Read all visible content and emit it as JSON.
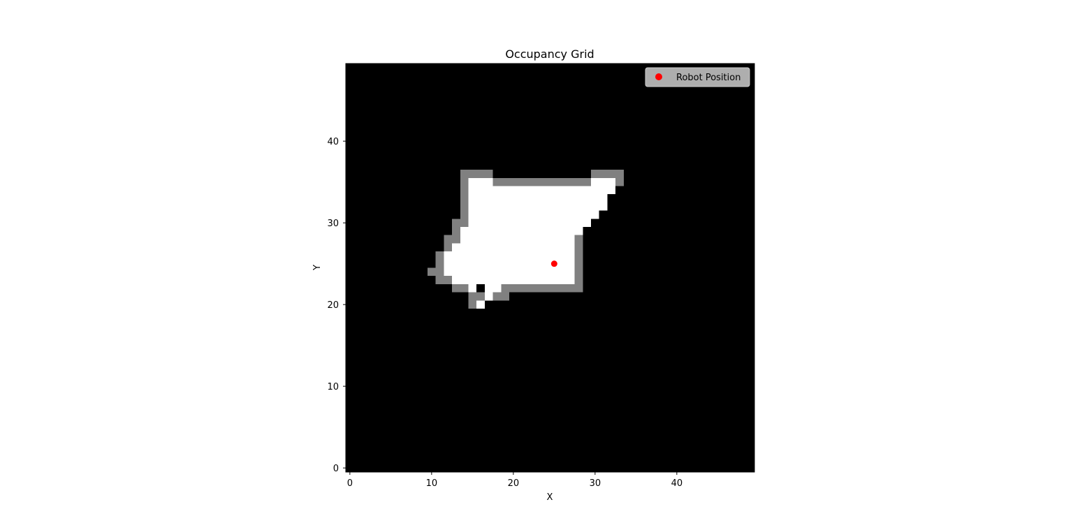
{
  "chart_data": {
    "type": "heatmap",
    "title": "Occupancy Grid",
    "xlabel": "X",
    "ylabel": "Y",
    "xlim": [
      -0.5,
      49.5
    ],
    "ylim": [
      -0.5,
      49.5
    ],
    "origin": "lower",
    "colormap": "gray",
    "xticks": [
      0,
      10,
      20,
      30,
      40
    ],
    "yticks": [
      0,
      10,
      20,
      30,
      40
    ],
    "grid": false,
    "legend": {
      "location": "upper right",
      "entries": [
        "Robot Position"
      ]
    },
    "cell_values": {
      "unknown": 0,
      "obstacle": 0.5,
      "free": 1
    },
    "free_rows": [
      {
        "y": 20,
        "x": [
          [
            16,
            16
          ]
        ]
      },
      {
        "y": 21,
        "x": [
          [
            17,
            17
          ]
        ]
      },
      {
        "y": 22,
        "x": [
          [
            15,
            15
          ],
          [
            17,
            18
          ]
        ]
      },
      {
        "y": 23,
        "x": [
          [
            13,
            27
          ]
        ]
      },
      {
        "y": 24,
        "x": [
          [
            12,
            27
          ]
        ]
      },
      {
        "y": 25,
        "x": [
          [
            12,
            27
          ]
        ]
      },
      {
        "y": 26,
        "x": [
          [
            12,
            27
          ]
        ]
      },
      {
        "y": 27,
        "x": [
          [
            13,
            27
          ]
        ]
      },
      {
        "y": 28,
        "x": [
          [
            14,
            27
          ]
        ]
      },
      {
        "y": 29,
        "x": [
          [
            14,
            28
          ]
        ]
      },
      {
        "y": 30,
        "x": [
          [
            15,
            29
          ]
        ]
      },
      {
        "y": 31,
        "x": [
          [
            15,
            30
          ]
        ]
      },
      {
        "y": 32,
        "x": [
          [
            15,
            31
          ]
        ]
      },
      {
        "y": 33,
        "x": [
          [
            15,
            31
          ]
        ]
      },
      {
        "y": 34,
        "x": [
          [
            15,
            32
          ]
        ]
      },
      {
        "y": 35,
        "x": [
          [
            15,
            17
          ],
          [
            30,
            32
          ]
        ]
      }
    ],
    "obstacle_rows": [
      {
        "y": 20,
        "x": [
          [
            15,
            15
          ]
        ]
      },
      {
        "y": 21,
        "x": [
          [
            15,
            16
          ],
          [
            18,
            19
          ]
        ]
      },
      {
        "y": 22,
        "x": [
          [
            13,
            14
          ],
          [
            19,
            28
          ]
        ]
      },
      {
        "y": 23,
        "x": [
          [
            11,
            12
          ],
          [
            28,
            28
          ]
        ]
      },
      {
        "y": 24,
        "x": [
          [
            10,
            11
          ],
          [
            28,
            28
          ]
        ]
      },
      {
        "y": 25,
        "x": [
          [
            11,
            11
          ],
          [
            28,
            28
          ]
        ]
      },
      {
        "y": 26,
        "x": [
          [
            11,
            11
          ],
          [
            28,
            28
          ]
        ]
      },
      {
        "y": 27,
        "x": [
          [
            12,
            12
          ],
          [
            28,
            28
          ]
        ]
      },
      {
        "y": 28,
        "x": [
          [
            12,
            13
          ],
          [
            28,
            28
          ]
        ]
      },
      {
        "y": 29,
        "x": [
          [
            13,
            13
          ]
        ]
      },
      {
        "y": 30,
        "x": [
          [
            13,
            14
          ]
        ]
      },
      {
        "y": 31,
        "x": [
          [
            14,
            14
          ]
        ]
      },
      {
        "y": 32,
        "x": [
          [
            14,
            14
          ]
        ]
      },
      {
        "y": 33,
        "x": [
          [
            14,
            14
          ]
        ]
      },
      {
        "y": 34,
        "x": [
          [
            14,
            14
          ]
        ]
      },
      {
        "y": 35,
        "x": [
          [
            14,
            14
          ],
          [
            18,
            29
          ],
          [
            33,
            33
          ]
        ]
      },
      {
        "y": 36,
        "x": [
          [
            14,
            17
          ],
          [
            30,
            33
          ]
        ]
      }
    ],
    "series": [
      {
        "name": "Robot Position",
        "type": "scatter",
        "x": [
          25
        ],
        "y": [
          25
        ],
        "color": "#ff0000"
      }
    ]
  }
}
